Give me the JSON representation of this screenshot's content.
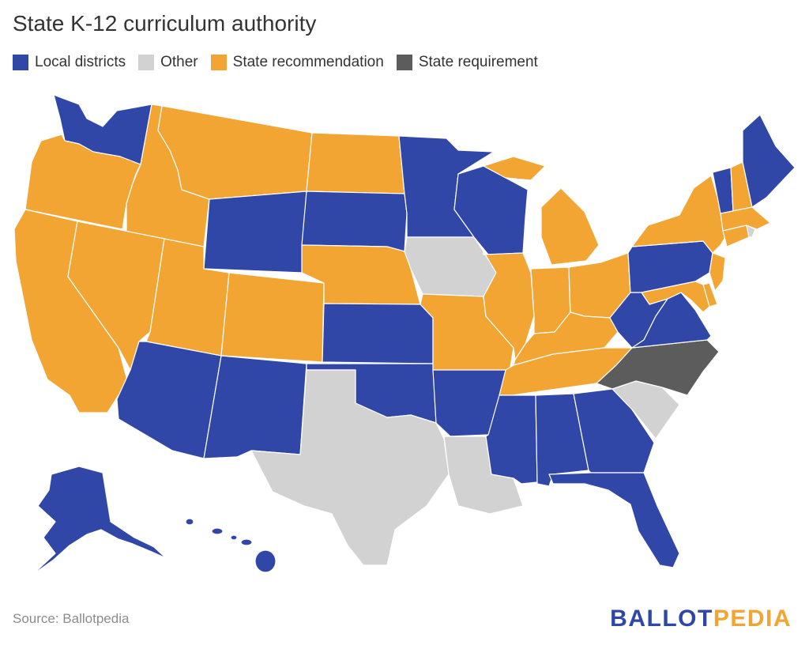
{
  "title": "State K-12 curriculum authority",
  "legend": [
    {
      "label": "Local districts",
      "category": "local",
      "color": "#3047a8"
    },
    {
      "label": "Other",
      "category": "other",
      "color": "#d2d2d2"
    },
    {
      "label": "State recommendation",
      "category": "recommendation",
      "color": "#f2a533"
    },
    {
      "label": "State requirement",
      "category": "requirement",
      "color": "#5c5c5c"
    }
  ],
  "states": {
    "WA": "local",
    "OR": "recommendation",
    "CA": "recommendation",
    "ID": "recommendation",
    "NV": "recommendation",
    "MT": "recommendation",
    "WY": "local",
    "UT": "recommendation",
    "AZ": "local",
    "CO": "recommendation",
    "NM": "local",
    "ND": "recommendation",
    "SD": "local",
    "NE": "recommendation",
    "KS": "local",
    "OK": "local",
    "TX": "other",
    "MN": "local",
    "IA": "other",
    "MO": "recommendation",
    "AR": "local",
    "LA": "other",
    "WI": "local",
    "IL": "recommendation",
    "MS": "local",
    "MI": "recommendation",
    "IN": "recommendation",
    "KY": "recommendation",
    "TN": "recommendation",
    "AL": "local",
    "OH": "recommendation",
    "WV": "local",
    "GA": "local",
    "FL": "local",
    "SC": "other",
    "NC": "requirement",
    "VA": "local",
    "PA": "local",
    "NY": "recommendation",
    "VT": "local",
    "NH": "recommendation",
    "ME": "local",
    "MA": "recommendation",
    "RI": "other",
    "CT": "recommendation",
    "NJ": "recommendation",
    "DE": "recommendation",
    "MD": "recommendation",
    "AK": "local",
    "HI": "local"
  },
  "source": "Source: Ballotpedia",
  "logo": {
    "part1": "BALLOT",
    "part2": "PEDIA"
  }
}
